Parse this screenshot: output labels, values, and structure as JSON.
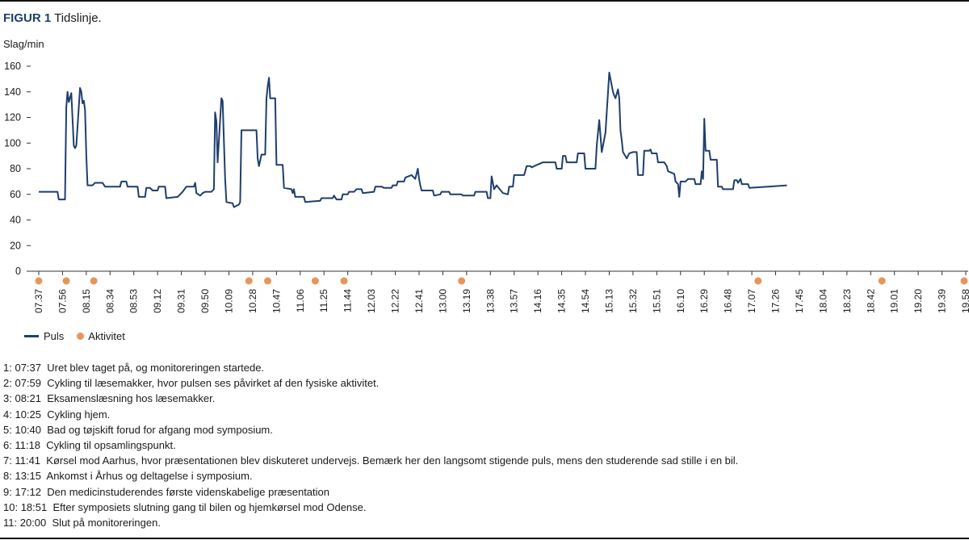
{
  "figure": {
    "label": "FIGUR 1",
    "title": "Tidslinje."
  },
  "colors": {
    "pulse": "#1f3e6e",
    "activity": "#e8955a"
  },
  "chart_data": {
    "type": "line",
    "ylabel": "Slag/min",
    "ylim": [
      0,
      160
    ],
    "yticks": [
      0,
      20,
      40,
      60,
      80,
      100,
      120,
      140,
      160
    ],
    "grid": false,
    "legend_placement": "bottom-left",
    "x_range": [
      "07.37",
      "19.58"
    ],
    "xticks": [
      "07.37",
      "07.56",
      "08.15",
      "08.34",
      "08.53",
      "09.12",
      "09.31",
      "09.50",
      "10.09",
      "10.28",
      "10.47",
      "11.06",
      "11.25",
      "11.44",
      "12.03",
      "12.22",
      "12.41",
      "13.00",
      "13.19",
      "13.38",
      "13.57",
      "14.16",
      "14.35",
      "14.54",
      "15.13",
      "15.32",
      "15.51",
      "16.10",
      "16.29",
      "16.48",
      "17.07",
      "17.26",
      "17.45",
      "18.04",
      "18.23",
      "18.42",
      "19.01",
      "19.20",
      "19.39",
      "19.58"
    ],
    "series": [
      {
        "name": "Puls",
        "points": [
          [
            "07.37",
            62
          ],
          [
            "07.52",
            62
          ],
          [
            "07.53",
            56
          ],
          [
            "07.58",
            56
          ],
          [
            "07.59",
            128
          ],
          [
            "08.00",
            140
          ],
          [
            "08.01",
            132
          ],
          [
            "08.03",
            139
          ],
          [
            "08.05",
            98
          ],
          [
            "08.06",
            96
          ],
          [
            "08.07",
            98
          ],
          [
            "08.10",
            143
          ],
          [
            "08.11",
            140
          ],
          [
            "08.12",
            131
          ],
          [
            "08.13",
            133
          ],
          [
            "08.14",
            126
          ],
          [
            "08.15",
            90
          ],
          [
            "08.16",
            67
          ],
          [
            "08.20",
            67
          ],
          [
            "08.22",
            69
          ],
          [
            "08.28",
            69
          ],
          [
            "08.30",
            66
          ],
          [
            "08.42",
            66
          ],
          [
            "08.43",
            70
          ],
          [
            "08.47",
            70
          ],
          [
            "08.48",
            66
          ],
          [
            "08.56",
            66
          ],
          [
            "08.57",
            58
          ],
          [
            "09.02",
            58
          ],
          [
            "09.03",
            65
          ],
          [
            "09.06",
            65
          ],
          [
            "09.08",
            63
          ],
          [
            "09.12",
            63
          ],
          [
            "09.13",
            66
          ],
          [
            "09.18",
            66
          ],
          [
            "09.19",
            57
          ],
          [
            "09.28",
            58
          ],
          [
            "09.32",
            62
          ],
          [
            "09.35",
            66
          ],
          [
            "09.41",
            66
          ],
          [
            "09.42",
            69
          ],
          [
            "09.43",
            61
          ],
          [
            "09.46",
            59
          ],
          [
            "09.48",
            61
          ],
          [
            "09.50",
            62
          ],
          [
            "09.55",
            62
          ],
          [
            "09.57",
            64
          ],
          [
            "09.58",
            124
          ],
          [
            "09.59",
            117
          ],
          [
            "10.00",
            85
          ],
          [
            "10.02",
            118
          ],
          [
            "10.03",
            135
          ],
          [
            "10.04",
            133
          ],
          [
            "10.06",
            72
          ],
          [
            "10.07",
            54
          ],
          [
            "10.12",
            53
          ],
          [
            "10.13",
            50
          ],
          [
            "10.17",
            52
          ],
          [
            "10.18",
            54
          ],
          [
            "10.19",
            110
          ],
          [
            "10.31",
            110
          ],
          [
            "10.32",
            88
          ],
          [
            "10.33",
            82
          ],
          [
            "10.35",
            91
          ],
          [
            "10.38",
            91
          ],
          [
            "10.39",
            135
          ],
          [
            "10.40",
            144
          ],
          [
            "10.41",
            151
          ],
          [
            "10.42",
            135
          ],
          [
            "10.46",
            135
          ],
          [
            "10.47",
            83
          ],
          [
            "10.52",
            83
          ],
          [
            "10.53",
            65
          ],
          [
            "10.59",
            64
          ],
          [
            "11.00",
            61
          ],
          [
            "11.01",
            64
          ],
          [
            "11.02",
            58
          ],
          [
            "11.09",
            58
          ],
          [
            "11.10",
            54
          ],
          [
            "11.22",
            55
          ],
          [
            "11.23",
            57
          ],
          [
            "11.32",
            57
          ],
          [
            "11.33",
            59
          ],
          [
            "11.35",
            56
          ],
          [
            "11.39",
            56
          ],
          [
            "11.40",
            60
          ],
          [
            "11.44",
            60
          ],
          [
            "11.45",
            62
          ],
          [
            "11.49",
            62
          ],
          [
            "11.51",
            64
          ],
          [
            "11.55",
            64
          ],
          [
            "11.56",
            61
          ],
          [
            "12.05",
            62
          ],
          [
            "12.06",
            66
          ],
          [
            "12.11",
            66
          ],
          [
            "12.13",
            65
          ],
          [
            "12.19",
            65
          ],
          [
            "12.20",
            67
          ],
          [
            "12.23",
            67
          ],
          [
            "12.24",
            70
          ],
          [
            "12.29",
            70
          ],
          [
            "12.30",
            73
          ],
          [
            "12.35",
            75
          ],
          [
            "12.38",
            72
          ],
          [
            "12.40",
            80
          ],
          [
            "12.41",
            72
          ],
          [
            "12.42",
            67
          ],
          [
            "12.43",
            63
          ],
          [
            "12.52",
            63
          ],
          [
            "12.53",
            59
          ],
          [
            "12.58",
            60
          ],
          [
            "12.59",
            62
          ],
          [
            "13.05",
            62
          ],
          [
            "13.06",
            60
          ],
          [
            "13.15",
            60
          ],
          [
            "13.16",
            59
          ],
          [
            "13.25",
            59
          ],
          [
            "13.26",
            62
          ],
          [
            "13.35",
            62
          ],
          [
            "13.36",
            57
          ],
          [
            "13.38",
            57
          ],
          [
            "13.39",
            74
          ],
          [
            "13.41",
            64
          ],
          [
            "13.43",
            67
          ],
          [
            "13.48",
            61
          ],
          [
            "13.52",
            60
          ],
          [
            "13.53",
            66
          ],
          [
            "13.56",
            66
          ],
          [
            "13.57",
            75
          ],
          [
            "14.05",
            75
          ],
          [
            "14.07",
            82
          ],
          [
            "14.10",
            82
          ],
          [
            "14.11",
            81
          ],
          [
            "14.13",
            82
          ],
          [
            "14.20",
            85
          ],
          [
            "14.30",
            85
          ],
          [
            "14.31",
            80
          ],
          [
            "14.35",
            80
          ],
          [
            "14.36",
            90
          ],
          [
            "14.38",
            90
          ],
          [
            "14.39",
            85
          ],
          [
            "14.47",
            85
          ],
          [
            "14.48",
            92
          ],
          [
            "14.53",
            92
          ],
          [
            "14.54",
            80
          ],
          [
            "15.02",
            80
          ],
          [
            "15.03",
            98
          ],
          [
            "15.05",
            118
          ],
          [
            "15.07",
            93
          ],
          [
            "15.10",
            108
          ],
          [
            "15.13",
            155
          ],
          [
            "15.16",
            140
          ],
          [
            "15.17",
            137
          ],
          [
            "15.18",
            135
          ],
          [
            "15.20",
            142
          ],
          [
            "15.21",
            135
          ],
          [
            "15.22",
            110
          ],
          [
            "15.23",
            102
          ],
          [
            "15.24",
            93
          ],
          [
            "15.27",
            88
          ],
          [
            "15.29",
            92
          ],
          [
            "15.32",
            93
          ],
          [
            "15.35",
            93
          ],
          [
            "15.36",
            75
          ],
          [
            "15.40",
            75
          ],
          [
            "15.41",
            94
          ],
          [
            "15.45",
            94
          ],
          [
            "15.46",
            95
          ],
          [
            "15.47",
            92
          ],
          [
            "15.51",
            92
          ],
          [
            "15.52",
            85
          ],
          [
            "15.57",
            85
          ],
          [
            "15.59",
            82
          ],
          [
            "16.00",
            78
          ],
          [
            "16.05",
            76
          ],
          [
            "16.06",
            70
          ],
          [
            "16.08",
            68
          ],
          [
            "16.09",
            58
          ],
          [
            "16.10",
            70
          ],
          [
            "16.14",
            70
          ],
          [
            "16.16",
            72
          ],
          [
            "16.21",
            72
          ],
          [
            "16.22",
            68
          ],
          [
            "16.26",
            68
          ],
          [
            "16.27",
            78
          ],
          [
            "16.28",
            72
          ],
          [
            "16.29",
            119
          ],
          [
            "16.30",
            94
          ],
          [
            "16.33",
            94
          ],
          [
            "16.34",
            87
          ],
          [
            "16.39",
            87
          ],
          [
            "16.40",
            66
          ],
          [
            "16.43",
            66
          ],
          [
            "16.44",
            64
          ],
          [
            "16.52",
            64
          ],
          [
            "16.53",
            71
          ],
          [
            "16.55",
            71
          ],
          [
            "16.56",
            69
          ],
          [
            "16.58",
            72
          ],
          [
            "16.59",
            68
          ],
          [
            "17.04",
            68
          ],
          [
            "17.05",
            65
          ],
          [
            "17.20",
            66
          ],
          [
            "17.35",
            67
          ]
        ]
      },
      {
        "name": "Aktivitet",
        "marker": "dot",
        "note": "11 aktivitetsmarkeringer",
        "times": [
          "07.37",
          "07.59",
          "08.21",
          "10.25",
          "10.40",
          "11.18",
          "11.41",
          "13.15",
          "17.12",
          "18.51",
          "20.00"
        ]
      }
    ]
  },
  "legend": {
    "pulse_label": "Puls",
    "activity_label": "Aktivitet"
  },
  "notes": [
    {
      "n": "1:",
      "time": "07:37",
      "text": "Uret blev taget på, og monitoreringen startede."
    },
    {
      "n": "2:",
      "time": "07:59",
      "text": "Cykling til læsemakker, hvor pulsen ses påvirket af den fysiske aktivitet."
    },
    {
      "n": "3:",
      "time": "08:21",
      "text": "Eksamenslæsning hos læsemakker."
    },
    {
      "n": "4:",
      "time": "10:25",
      "text": "Cykling hjem."
    },
    {
      "n": "5:",
      "time": "10:40",
      "text": "Bad og tøjskift forud for afgang mod symposium."
    },
    {
      "n": "6:",
      "time": "11:18",
      "text": "Cykling til opsamlingspunkt."
    },
    {
      "n": "7:",
      "time": "11:41",
      "text": "Kørsel mod Aarhus, hvor præsentationen blev diskuteret undervejs. Bemærk her den langsomt stigende puls, mens den studerende sad stille i en bil."
    },
    {
      "n": "8:",
      "time": "13:15",
      "text": "Ankomst i Århus og deltagelse i symposium."
    },
    {
      "n": "9:",
      "time": "17:12",
      "text": "Den medicinstuderendes første videnskabelige præsentation"
    },
    {
      "n": "10:",
      "time": "18:51",
      "text": "Efter symposiets slutning gang til bilen og hjemkørsel mod Odense."
    },
    {
      "n": "11:",
      "time": "20:00",
      "text": "Slut på monitoreringen."
    }
  ]
}
